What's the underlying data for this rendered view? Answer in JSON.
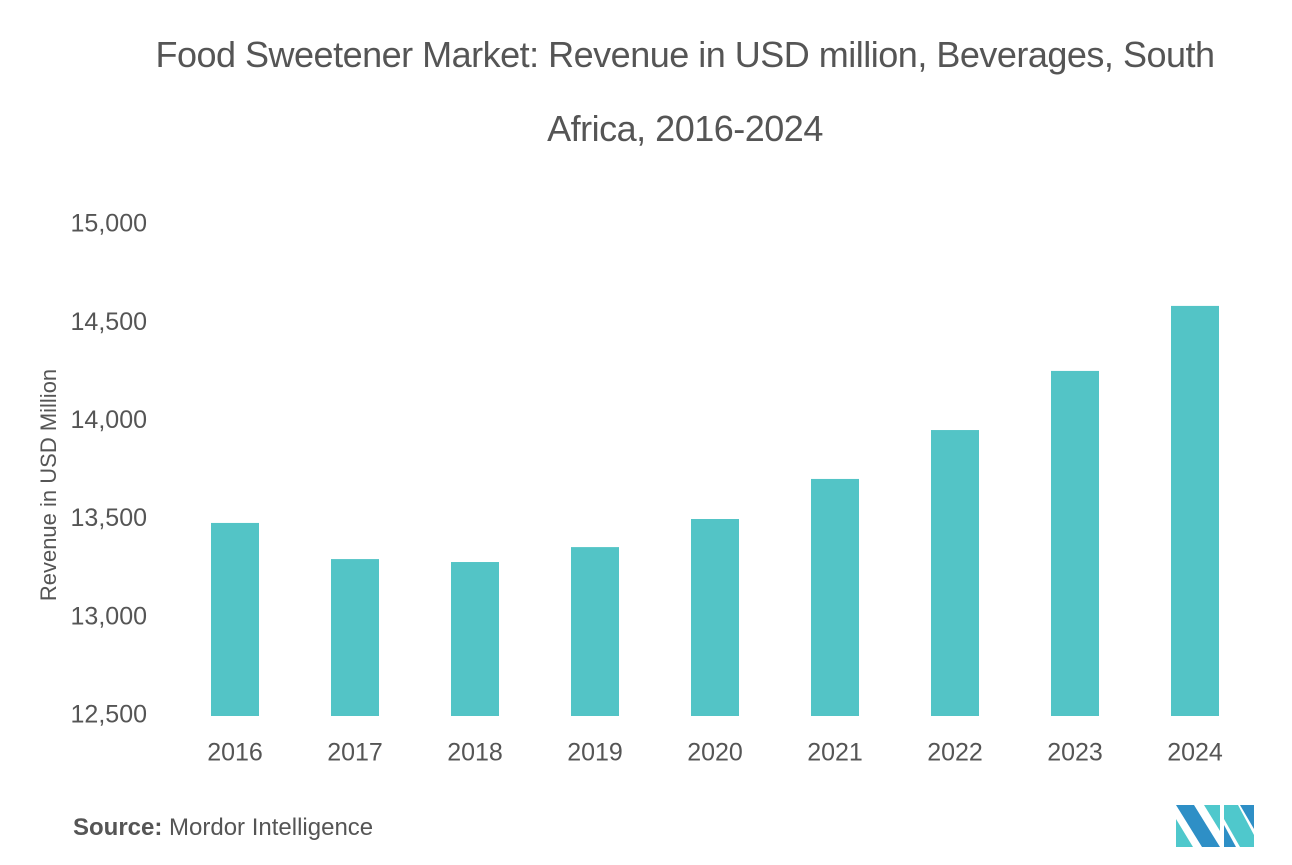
{
  "chart_data": {
    "type": "bar",
    "title": "Food Sweetener Market: Revenue in USD million, Beverages, South Africa, 2016-2024",
    "title_lines": [
      "Food Sweetener Market: Revenue in USD million, Beverages, South",
      "Africa, 2016-2024"
    ],
    "xlabel": "",
    "ylabel": "Revenue in USD Million",
    "categories": [
      "2016",
      "2017",
      "2018",
      "2019",
      "2020",
      "2021",
      "2022",
      "2023",
      "2024"
    ],
    "values": [
      13483,
      13299,
      13284,
      13360,
      13503,
      13707,
      13956,
      14257,
      14588
    ],
    "ylim": [
      12500,
      15000
    ],
    "yticks": [
      12500,
      13000,
      13500,
      14000,
      14500,
      15000
    ],
    "ytick_labels": [
      "12,500",
      "13,000",
      "13,500",
      "14,000",
      "14,500",
      "15,000"
    ],
    "grid": false,
    "legend": null,
    "bar_color": "#53C4C6"
  },
  "footer": {
    "source_label": "Source:",
    "source_value": "Mordor Intelligence"
  },
  "logo": {
    "name": "mordor-intelligence-logo",
    "colors": [
      "#2E8FC6",
      "#4FC8CC"
    ]
  }
}
